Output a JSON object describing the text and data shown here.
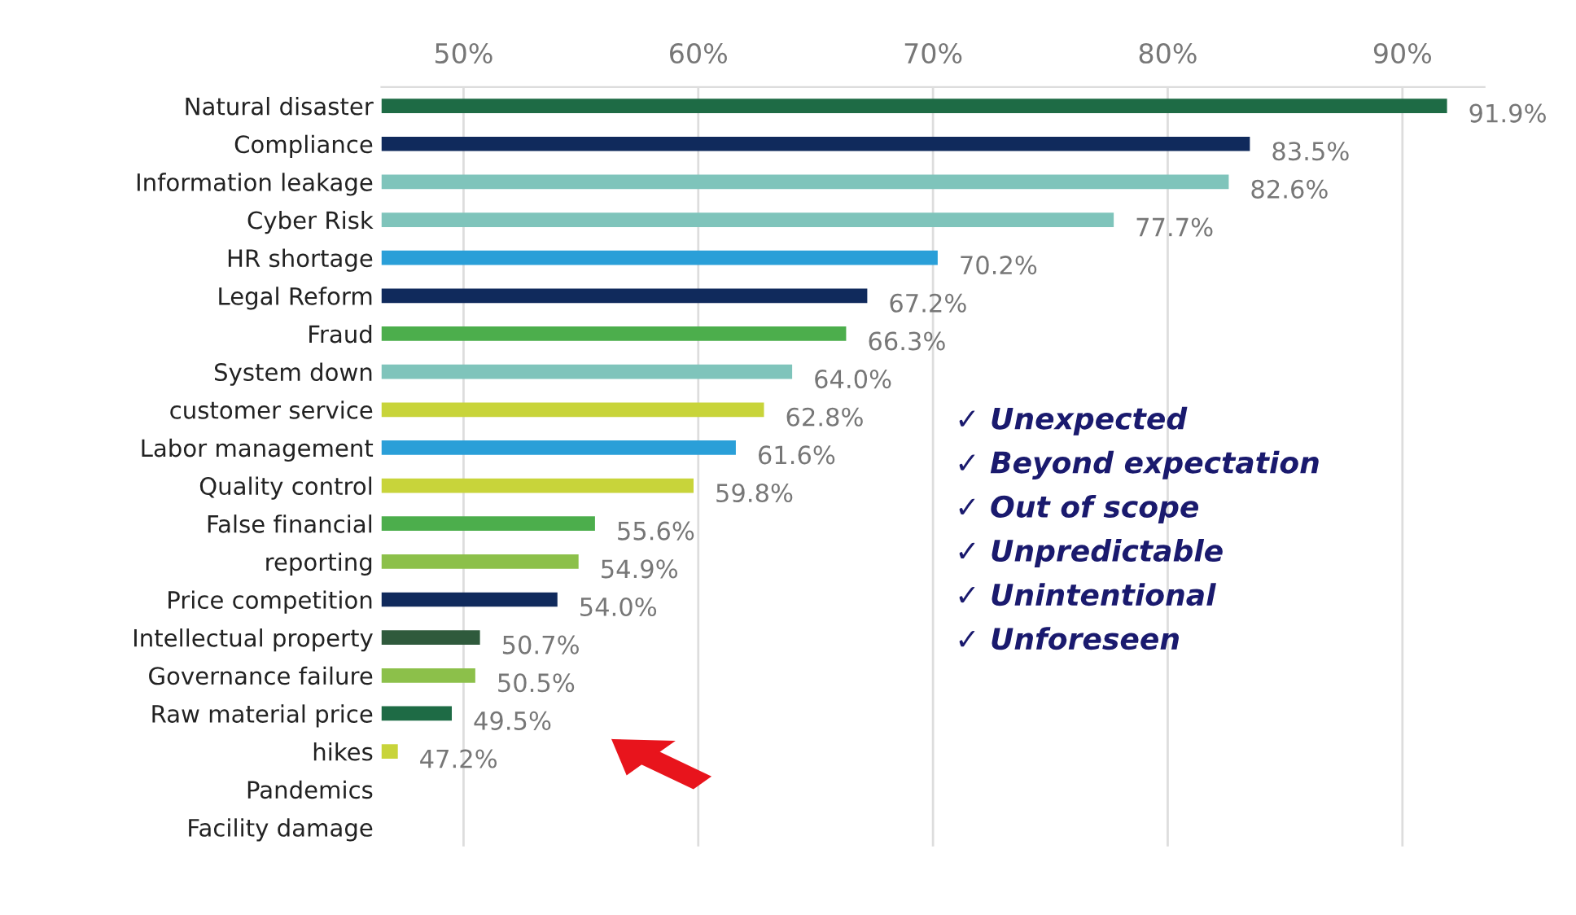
{
  "chart_data": {
    "type": "bar",
    "orientation": "horizontal",
    "categories": [
      "Natural disaster",
      "Compliance",
      "Information leakage",
      "Cyber Risk",
      "HR shortage",
      "Legal Reform",
      "Fraud",
      "System down",
      "customer service",
      "Labor management",
      "Quality control",
      "False financial",
      "reporting",
      "Price competition",
      "Intellectual property",
      "Governance failure",
      "Raw material price",
      "hikes",
      "Pandemics",
      "Facility damage"
    ],
    "values": [
      91.9,
      83.5,
      82.6,
      77.7,
      70.2,
      67.2,
      66.3,
      64.0,
      62.8,
      61.6,
      59.8,
      55.6,
      54.9,
      54.0,
      50.7,
      50.5,
      49.5,
      47.2,
      null,
      null
    ],
    "value_labels": [
      "91.9%",
      "83.5%",
      "82.6%",
      "77.7%",
      "70.2%",
      "67.2%",
      "66.3%",
      "64.0%",
      "62.8%",
      "61.6%",
      "59.8%",
      "55.6%",
      "54.9%",
      "54.0%",
      "50.7%",
      "50.5%",
      "49.5%",
      "47.2%",
      null,
      null
    ],
    "colors": [
      "#1e6b45",
      "#102a5c",
      "#7fc4bb",
      "#7fc4bb",
      "#2a9fd8",
      "#102a5c",
      "#4cae4c",
      "#7fc4bb",
      "#c8d43a",
      "#2a9fd8",
      "#c8d43a",
      "#4cae4c",
      "#8cc04a",
      "#102a5c",
      "#2f5a3c",
      "#8cc04a",
      "#1e6b45",
      "#c8d43a",
      "#cccccc",
      "#cccccc"
    ],
    "xlim": [
      46.5,
      93.5
    ],
    "xticks": [
      {
        "value": 50,
        "label": "50%"
      },
      {
        "value": 60,
        "label": "60%"
      },
      {
        "value": 70,
        "label": "70%"
      },
      {
        "value": 80,
        "label": "80%"
      },
      {
        "value": 90,
        "label": "90%"
      }
    ],
    "grid": "x",
    "annotations": [
      "✓ Unexpected",
      "✓ Beyond expectation",
      "✓ Out of scope",
      "✓ Unpredictable",
      "✓ Unintentional",
      "✓ Unforeseen"
    ]
  }
}
